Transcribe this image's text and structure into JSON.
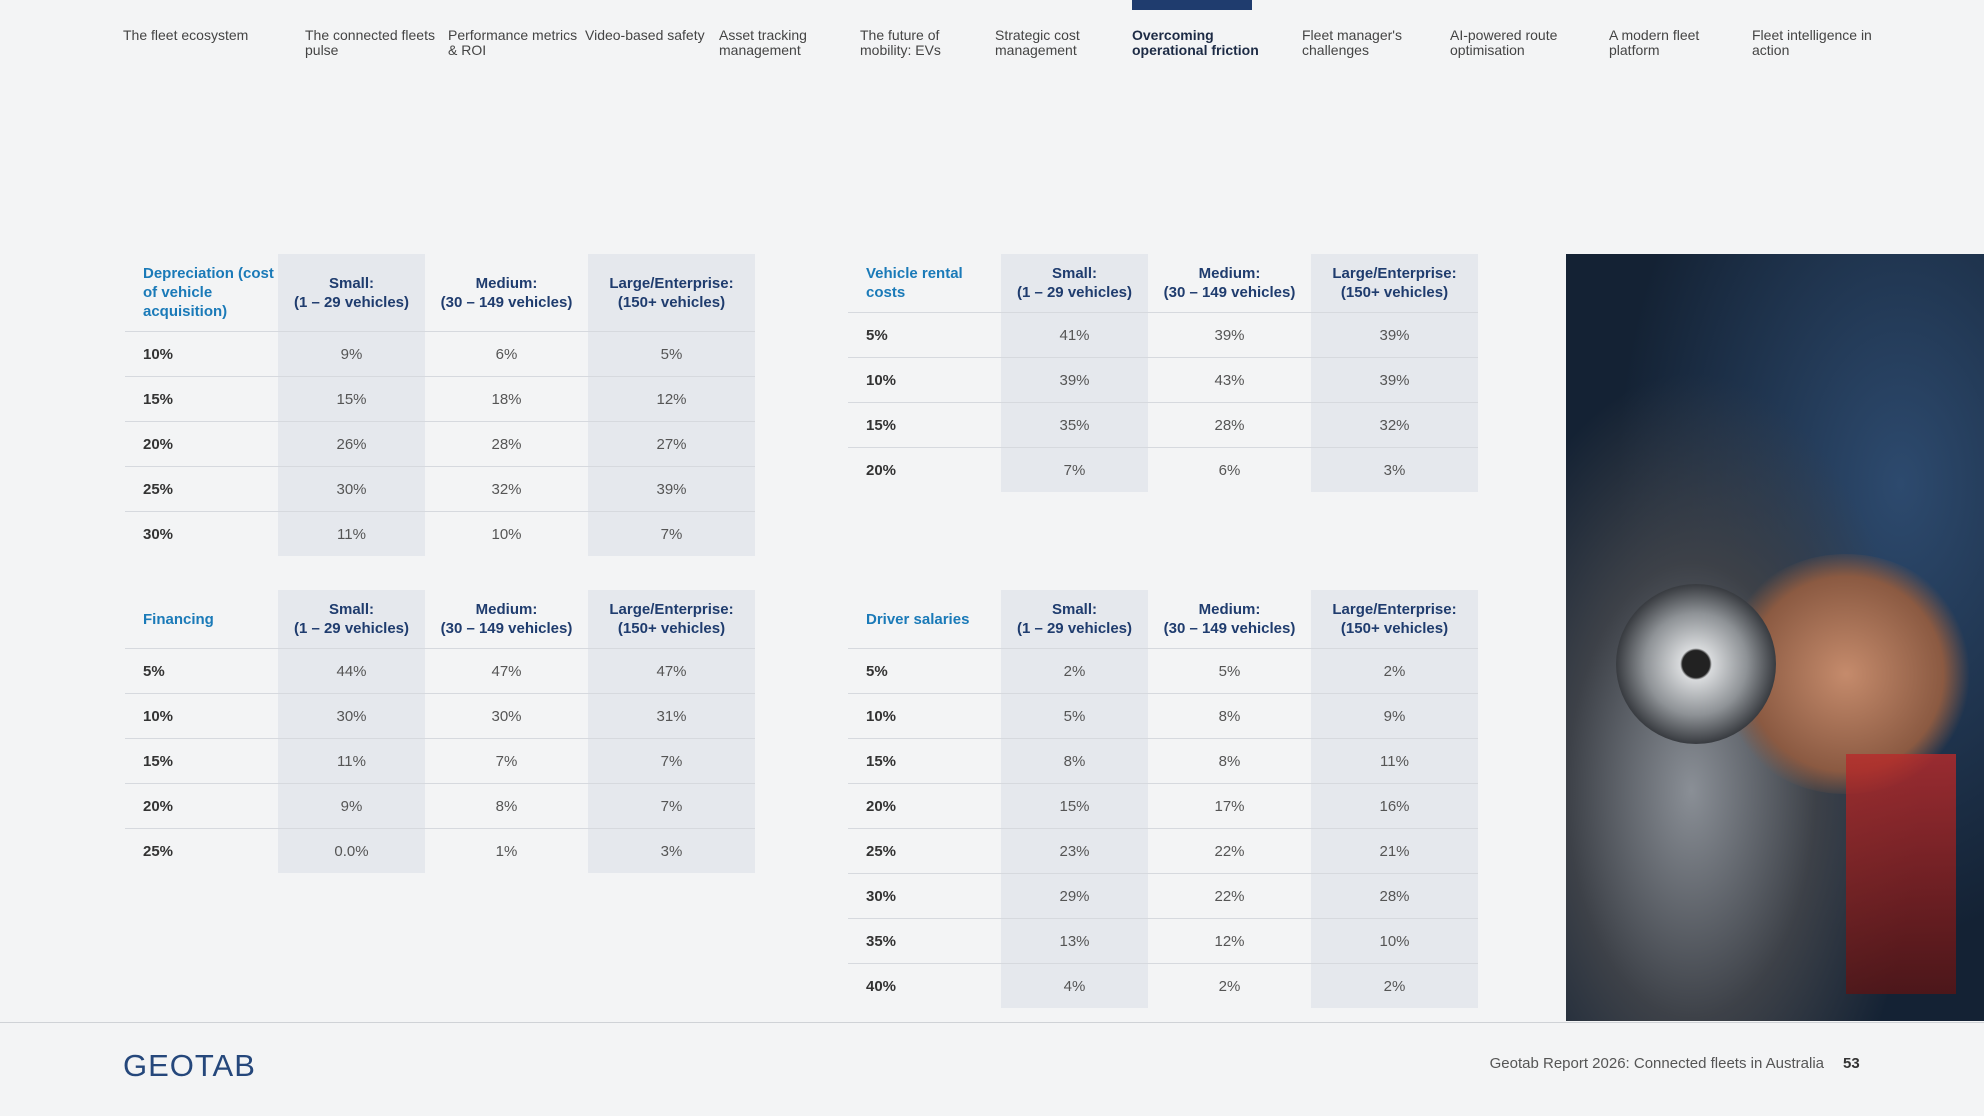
{
  "nav": {
    "items": [
      "The fleet ecosystem",
      "The connected fleets pulse",
      "Performance metrics & ROI",
      "Video-based safety",
      "Asset tracking management",
      "The future of mobility: EVs",
      "Strategic cost management",
      "Overcoming operational friction",
      "Fleet manager's challenges",
      "AI-powered route optimisation",
      "A modern fleet platform",
      "Fleet intelligence in action"
    ],
    "active": 7
  },
  "tables": [
    {
      "title": "Depreciation (cost of vehicle acquisition)",
      "columns": [
        "Small:\n(1 – 29 vehicles)",
        "Medium:\n(30 – 149 vehicles)",
        "Large/Enterprise:\n(150+ vehicles)"
      ],
      "rows": [
        [
          "10%",
          "9%",
          "6%",
          "5%"
        ],
        [
          "15%",
          "15%",
          "18%",
          "12%"
        ],
        [
          "20%",
          "26%",
          "28%",
          "27%"
        ],
        [
          "25%",
          "30%",
          "32%",
          "39%"
        ],
        [
          "30%",
          "11%",
          "10%",
          "7%"
        ]
      ]
    },
    {
      "title": "Vehicle rental costs",
      "columns": [
        "Small:\n(1 – 29 vehicles)",
        "Medium:\n(30 – 149 vehicles)",
        "Large/Enterprise:\n(150+ vehicles)"
      ],
      "rows": [
        [
          "5%",
          "41%",
          "39%",
          "39%"
        ],
        [
          "10%",
          "39%",
          "43%",
          "39%"
        ],
        [
          "15%",
          "35%",
          "28%",
          "32%"
        ],
        [
          "20%",
          "7%",
          "6%",
          "3%"
        ]
      ]
    },
    {
      "title": "Financing",
      "columns": [
        "Small:\n(1 – 29 vehicles)",
        "Medium:\n(30 – 149 vehicles)",
        "Large/Enterprise:\n(150+ vehicles)"
      ],
      "rows": [
        [
          "5%",
          "44%",
          "47%",
          "47%"
        ],
        [
          "10%",
          "30%",
          "30%",
          "31%"
        ],
        [
          "15%",
          "11%",
          "7%",
          "7%"
        ],
        [
          "20%",
          "9%",
          "8%",
          "7%"
        ],
        [
          "25%",
          "0.0%",
          "1%",
          "3%"
        ]
      ]
    },
    {
      "title": "Driver salaries",
      "columns": [
        "Small:\n(1 – 29 vehicles)",
        "Medium:\n(30 – 149 vehicles)",
        "Large/Enterprise:\n(150+ vehicles)"
      ],
      "rows": [
        [
          "5%",
          "2%",
          "5%",
          "2%"
        ],
        [
          "10%",
          "5%",
          "8%",
          "9%"
        ],
        [
          "15%",
          "8%",
          "8%",
          "11%"
        ],
        [
          "20%",
          "15%",
          "17%",
          "16%"
        ],
        [
          "25%",
          "23%",
          "22%",
          "21%"
        ],
        [
          "30%",
          "29%",
          "22%",
          "28%"
        ],
        [
          "35%",
          "13%",
          "12%",
          "10%"
        ],
        [
          "40%",
          "4%",
          "2%",
          "2%"
        ]
      ]
    }
  ],
  "footer": {
    "logo": "GEOTAB",
    "text": "Geotab Report 2026: Connected fleets in Australia",
    "page": "53"
  }
}
